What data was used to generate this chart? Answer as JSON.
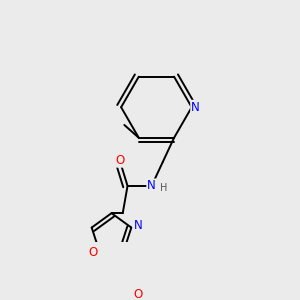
{
  "background_color": "#ebebeb",
  "bond_color": "#000000",
  "atom_colors": {
    "N": "#0000ff",
    "O": "#ff0000",
    "C": "#000000",
    "H": "#808080"
  },
  "font_size": 8.5,
  "line_width": 1.4,
  "fig_size": [
    3.0,
    3.0
  ],
  "dpi": 100
}
